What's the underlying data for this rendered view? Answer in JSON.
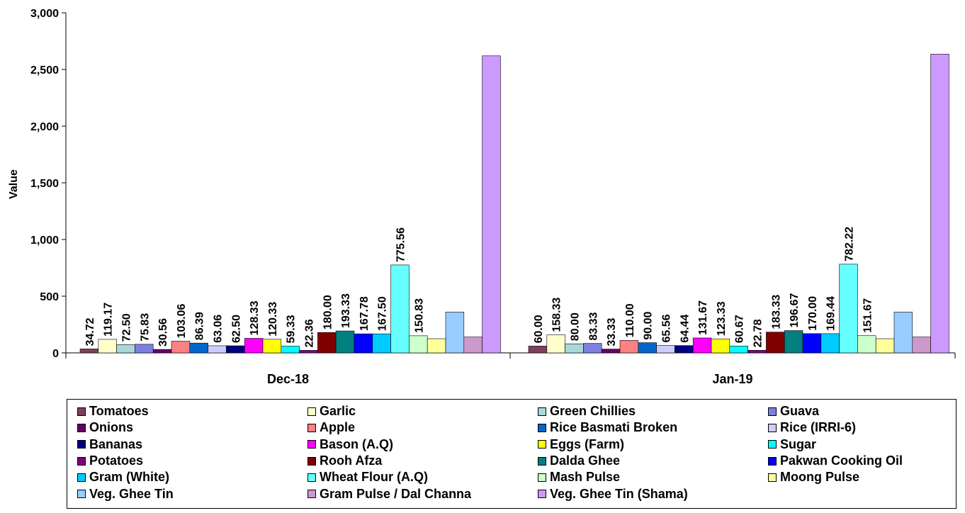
{
  "chart_data": {
    "type": "bar",
    "ylabel": "Value",
    "xlabel": "",
    "ylim": [
      0,
      3000
    ],
    "y_ticks": [
      "0",
      "500",
      "1,000",
      "1,500",
      "2,000",
      "2,500",
      "3,000"
    ],
    "y_tick_values": [
      0,
      500,
      1000,
      1500,
      2000,
      2500,
      3000
    ],
    "grid": false,
    "legend_position": "bottom",
    "categories": [
      "Dec-18",
      "Jan-19"
    ],
    "series": [
      {
        "name": "Tomatoes",
        "color": "#7f3f5f",
        "values": [
          34.72,
          60.0
        ],
        "labels": [
          "34.72",
          "60.00"
        ]
      },
      {
        "name": "Garlic",
        "color": "#ffffcc",
        "values": [
          119.17,
          158.33
        ],
        "labels": [
          "119.17",
          "158.33"
        ]
      },
      {
        "name": "Green Chillies",
        "color": "#a9d8d8",
        "values": [
          72.5,
          80.0
        ],
        "labels": [
          "72.50",
          "80.00"
        ]
      },
      {
        "name": "Guava",
        "color": "#7f7fe0",
        "values": [
          75.83,
          83.33
        ],
        "labels": [
          "75.83",
          "83.33"
        ]
      },
      {
        "name": "Onions",
        "color": "#660066",
        "values": [
          30.56,
          33.33
        ],
        "labels": [
          "30.56",
          "33.33"
        ]
      },
      {
        "name": "Apple",
        "color": "#ff8080",
        "values": [
          103.06,
          110.0
        ],
        "labels": [
          "103.06",
          "110.00"
        ]
      },
      {
        "name": "Rice Basmati Broken",
        "color": "#0066cc",
        "values": [
          86.39,
          90.0
        ],
        "labels": [
          "86.39",
          "90.00"
        ]
      },
      {
        "name": "Rice (IRRI-6)",
        "color": "#ccccff",
        "values": [
          63.06,
          65.56
        ],
        "labels": [
          "63.06",
          "65.56"
        ]
      },
      {
        "name": "Bananas",
        "color": "#000080",
        "values": [
          62.5,
          64.44
        ],
        "labels": [
          "62.50",
          "64.44"
        ]
      },
      {
        "name": "Bason (A.Q)",
        "color": "#ff00ff",
        "values": [
          128.33,
          131.67
        ],
        "labels": [
          "128.33",
          "131.67"
        ]
      },
      {
        "name": "Eggs (Farm)",
        "color": "#ffff00",
        "values": [
          120.33,
          123.33
        ],
        "labels": [
          "120.33",
          "123.33"
        ]
      },
      {
        "name": "Sugar",
        "color": "#00ffff",
        "values": [
          59.33,
          60.67
        ],
        "labels": [
          "59.33",
          "60.67"
        ]
      },
      {
        "name": "Potatoes",
        "color": "#800080",
        "values": [
          22.36,
          22.78
        ],
        "labels": [
          "22.36",
          "22.78"
        ]
      },
      {
        "name": "Rooh Afza",
        "color": "#800000",
        "values": [
          180.0,
          183.33
        ],
        "labels": [
          "180.00",
          "183.33"
        ]
      },
      {
        "name": "Dalda Ghee",
        "color": "#008080",
        "values": [
          193.33,
          196.67
        ],
        "labels": [
          "193.33",
          "196.67"
        ]
      },
      {
        "name": "Pakwan Cooking Oil",
        "color": "#0000ff",
        "values": [
          167.78,
          170.0
        ],
        "labels": [
          "167.78",
          "170.00"
        ]
      },
      {
        "name": "Gram (White)",
        "color": "#00ccff",
        "values": [
          167.5,
          169.44
        ],
        "labels": [
          "167.50",
          "169.44"
        ]
      },
      {
        "name": "Wheat Flour (A.Q)",
        "color": "#66ffff",
        "values": [
          775.56,
          782.22
        ],
        "labels": [
          "775.56",
          "782.22"
        ]
      },
      {
        "name": "Mash Pulse",
        "color": "#ccffcc",
        "values": [
          150.83,
          151.67
        ],
        "labels": [
          "150.83",
          "151.67"
        ]
      },
      {
        "name": "Moong Pulse",
        "color": "#ffff99",
        "values": [
          125,
          125
        ],
        "labels": [
          "",
          ""
        ]
      },
      {
        "name": "Veg. Ghee Tin",
        "color": "#99ccff",
        "values": [
          360,
          360
        ],
        "labels": [
          "",
          ""
        ]
      },
      {
        "name": "Gram Pulse / Dal Channa",
        "color": "#cc99cc",
        "values": [
          140,
          140
        ],
        "labels": [
          "",
          ""
        ]
      },
      {
        "name": "Veg. Ghee Tin (Shama)",
        "color": "#cc99ff",
        "values": [
          2620,
          2635
        ],
        "labels": [
          "",
          ""
        ]
      }
    ]
  }
}
